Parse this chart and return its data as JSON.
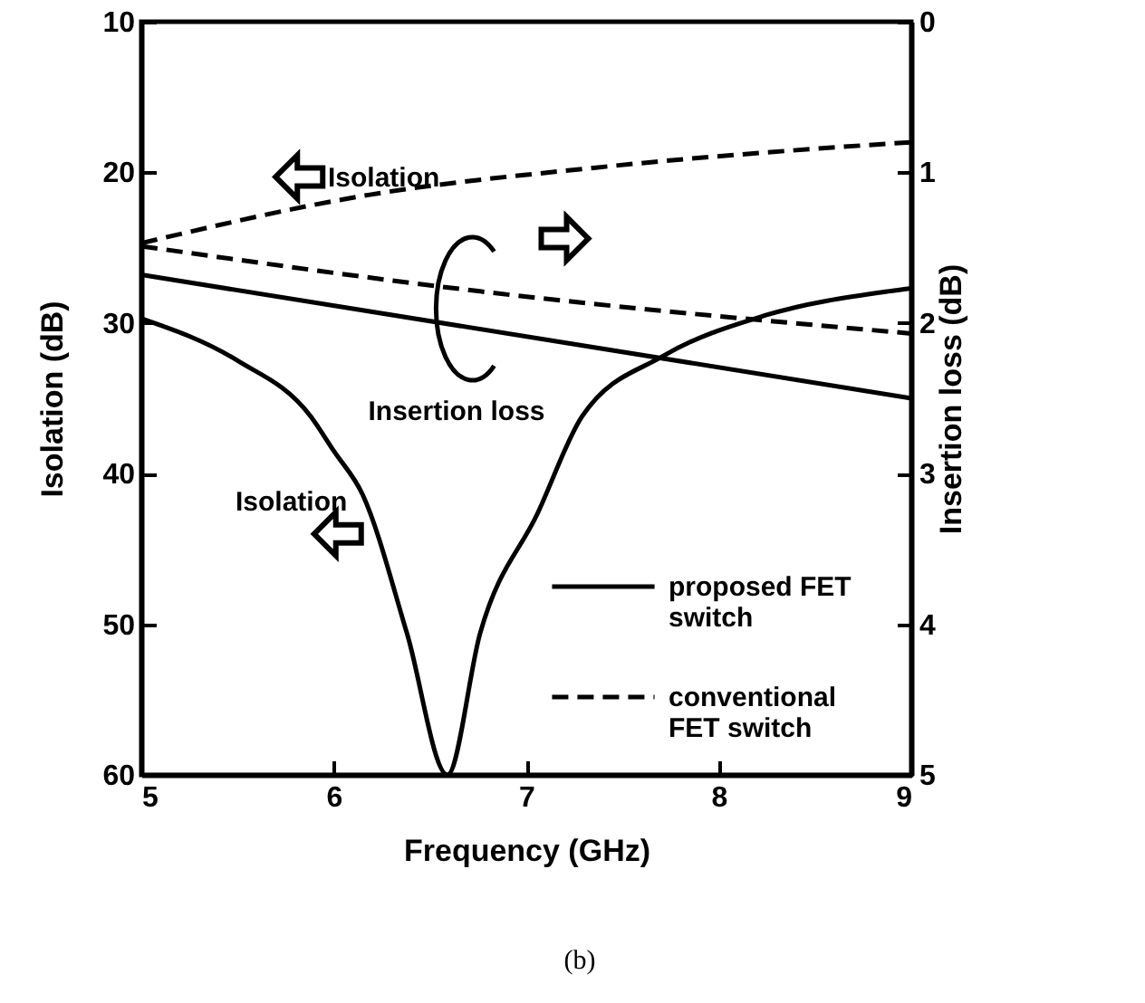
{
  "chart_data": {
    "type": "line",
    "xlabel": "Frequency (GHz)",
    "ylabel": "Isolation (dB)",
    "y2label": "Insertion loss (dB)",
    "xlim": [
      5,
      9
    ],
    "xticks": [
      5,
      6,
      7,
      8,
      9
    ],
    "ylim": [
      60,
      10
    ],
    "yticks": [
      10,
      20,
      30,
      40,
      50,
      60
    ],
    "y2lim": [
      5,
      0
    ],
    "y2ticks": [
      0,
      1,
      2,
      3,
      4,
      5
    ],
    "grid": false,
    "legend": "bottom right",
    "marker": "none",
    "annotations": [
      "Isolation",
      "Insertion loss",
      "Isolation",
      "(b)"
    ],
    "series": [
      {
        "name": "proposed FET switch",
        "color": "#000000",
        "line_style": "solid",
        "x": [
          5,
          5.5,
          5.88,
          6.0,
          6.15,
          6.38,
          6.59,
          6.76,
          7.06,
          7.29,
          7.71,
          8.24,
          8.88,
          9
        ],
        "values": [
          29.7,
          32.5,
          36.2,
          38.5,
          41.4,
          50.6,
          60,
          50.6,
          42.6,
          36.2,
          32.2,
          29.5,
          27.9,
          27.7
        ]
      },
      {
        "color": "#000000",
        "line_style": "solid",
        "axis": "y2",
        "x": [
          5,
          9
        ],
        "values": [
          1.68,
          2.5
        ]
      },
      {
        "name": "conventional FET switch",
        "color": "#000000",
        "line_style": "dashed",
        "x": [
          5,
          6.18,
          7.35,
          8.88,
          9
        ],
        "values": [
          24.7,
          21.5,
          19.7,
          18.1,
          18.0
        ]
      },
      {
        "color": "#000000",
        "line_style": "dashed",
        "axis": "y2",
        "x": [
          5,
          6.76,
          9
        ],
        "values": [
          1.49,
          1.79,
          2.07
        ]
      }
    ]
  }
}
